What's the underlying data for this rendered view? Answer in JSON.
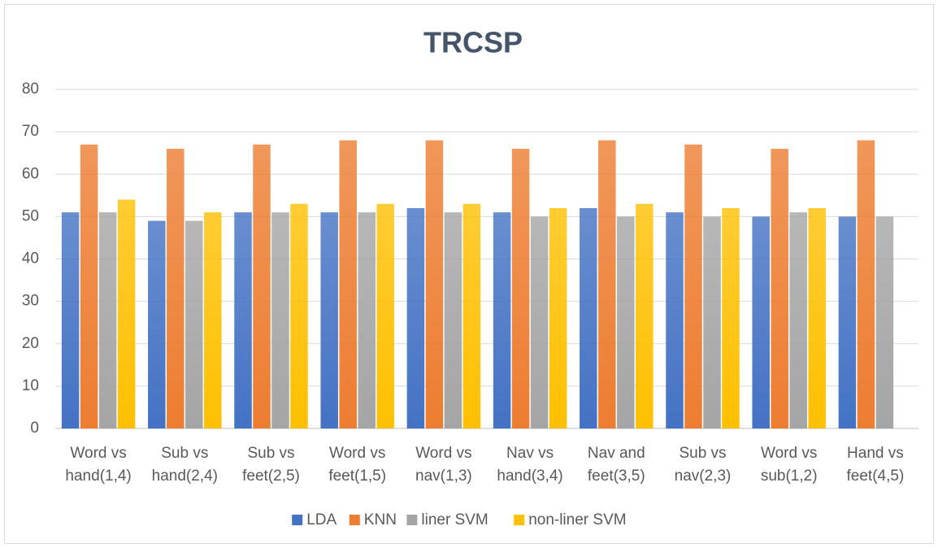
{
  "chart_data": {
    "type": "bar",
    "title": "TRCSP",
    "categories": [
      "Word vs hand(1,4)",
      "Sub vs hand(2,4)",
      "Sub vs feet(2,5)",
      "Word vs feet(1,5)",
      "Word vs nav(1,3)",
      "Nav vs hand(3,4)",
      "Nav and feet(3,5)",
      "Sub vs nav(2,3)",
      "Word vs sub(1,2)",
      "Hand vs feet(4,5)"
    ],
    "series": [
      {
        "name": "LDA",
        "color": "#4472c4",
        "values": [
          51,
          49,
          51,
          51,
          52,
          51,
          52,
          51,
          50,
          50
        ]
      },
      {
        "name": "KNN",
        "color": "#ed7d31",
        "values": [
          67,
          66,
          67,
          68,
          68,
          66,
          68,
          67,
          66,
          68
        ]
      },
      {
        "name": "liner SVM",
        "color": "#a5a5a5",
        "values": [
          51,
          49,
          51,
          51,
          51,
          50,
          50,
          50,
          51,
          50
        ]
      },
      {
        "name": "non-liner SVM",
        "color": "#ffc000",
        "values": [
          54,
          51,
          53,
          53,
          53,
          52,
          53,
          52,
          52,
          null
        ]
      }
    ],
    "ylim": [
      0,
      80
    ],
    "yticks": [
      0,
      10,
      20,
      30,
      40,
      50,
      60,
      70,
      80
    ],
    "grid": true,
    "legend": "bottom"
  }
}
